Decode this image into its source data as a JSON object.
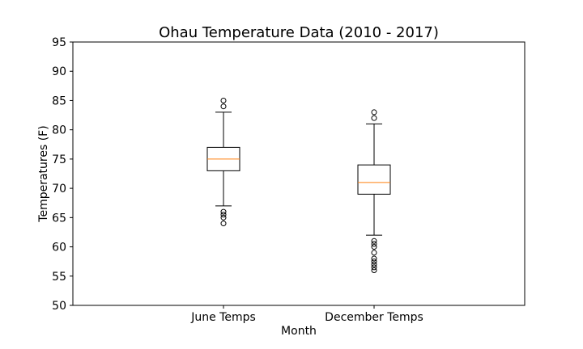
{
  "chart_data": {
    "type": "box",
    "title": "Ohau Temperature Data (2010 - 2017)",
    "xlabel": "Month",
    "ylabel": "Temperatures (F)",
    "ylim": [
      50,
      95
    ],
    "yticks": [
      50,
      55,
      60,
      65,
      70,
      75,
      80,
      85,
      90,
      95
    ],
    "grid": false,
    "categories": [
      "June Temps",
      "December Temps"
    ],
    "boxes": [
      {
        "label": "June Temps",
        "whisker_low": 67,
        "q1": 73,
        "median": 75,
        "q3": 77,
        "whisker_high": 83,
        "outliers": [
          64,
          65,
          65.5,
          66,
          84,
          85
        ]
      },
      {
        "label": "December Temps",
        "whisker_low": 62,
        "q1": 69,
        "median": 71,
        "q3": 74,
        "whisker_high": 81,
        "outliers": [
          56,
          56.5,
          57,
          57.5,
          58,
          59,
          60,
          60.5,
          61,
          82,
          83
        ]
      }
    ],
    "colors": {
      "box": "#000000",
      "median": "#ff7f0e",
      "outlier": "#000000"
    }
  }
}
